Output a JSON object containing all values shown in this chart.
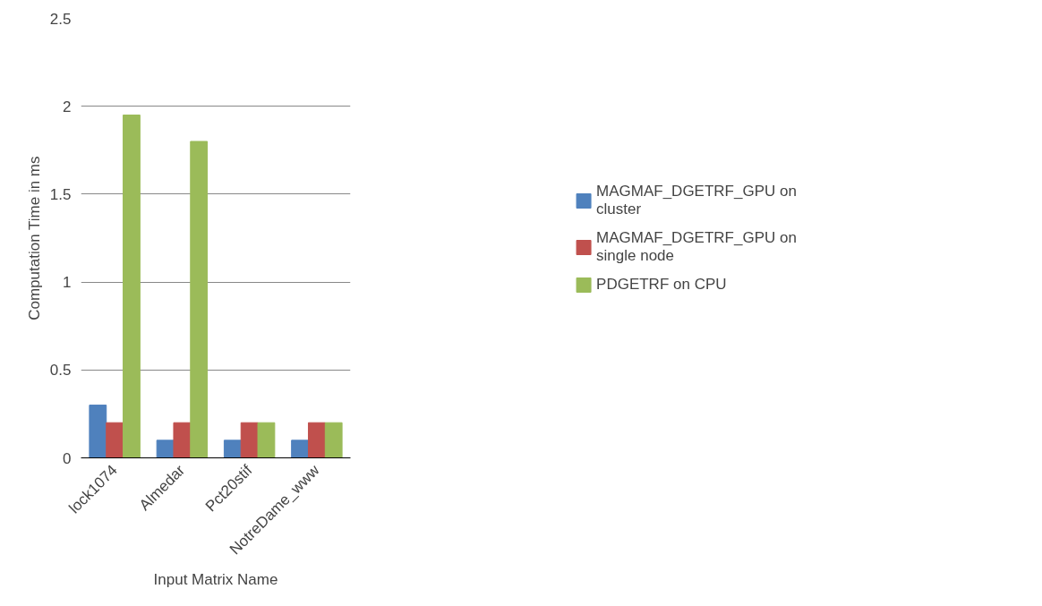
{
  "chart_data": {
    "type": "bar",
    "xlabel": "Input Matrix Name",
    "ylabel": "Computation Time in ms",
    "categories": [
      "lock1074",
      "Almedar",
      "Pct20stif",
      "NotreDame_www"
    ],
    "series": [
      {
        "name": "MAGMAF_DGETRF_GPU on cluster",
        "color": "#4f81bd",
        "values": [
          0.3,
          0.1,
          0.1,
          0.1
        ]
      },
      {
        "name": "MAGMAF_DGETRF_GPU on single node",
        "color": "#c0504d",
        "values": [
          0.2,
          0.2,
          0.2,
          0.2
        ]
      },
      {
        "name": "PDGETRF on CPU",
        "color": "#9bbb59",
        "values": [
          1.95,
          1.8,
          0.2,
          0.2
        ]
      }
    ],
    "ylim": [
      0,
      2.5
    ],
    "yticks": [
      0,
      0.5,
      1,
      1.5,
      2,
      2.5
    ],
    "grid": "y",
    "legend": "right"
  }
}
